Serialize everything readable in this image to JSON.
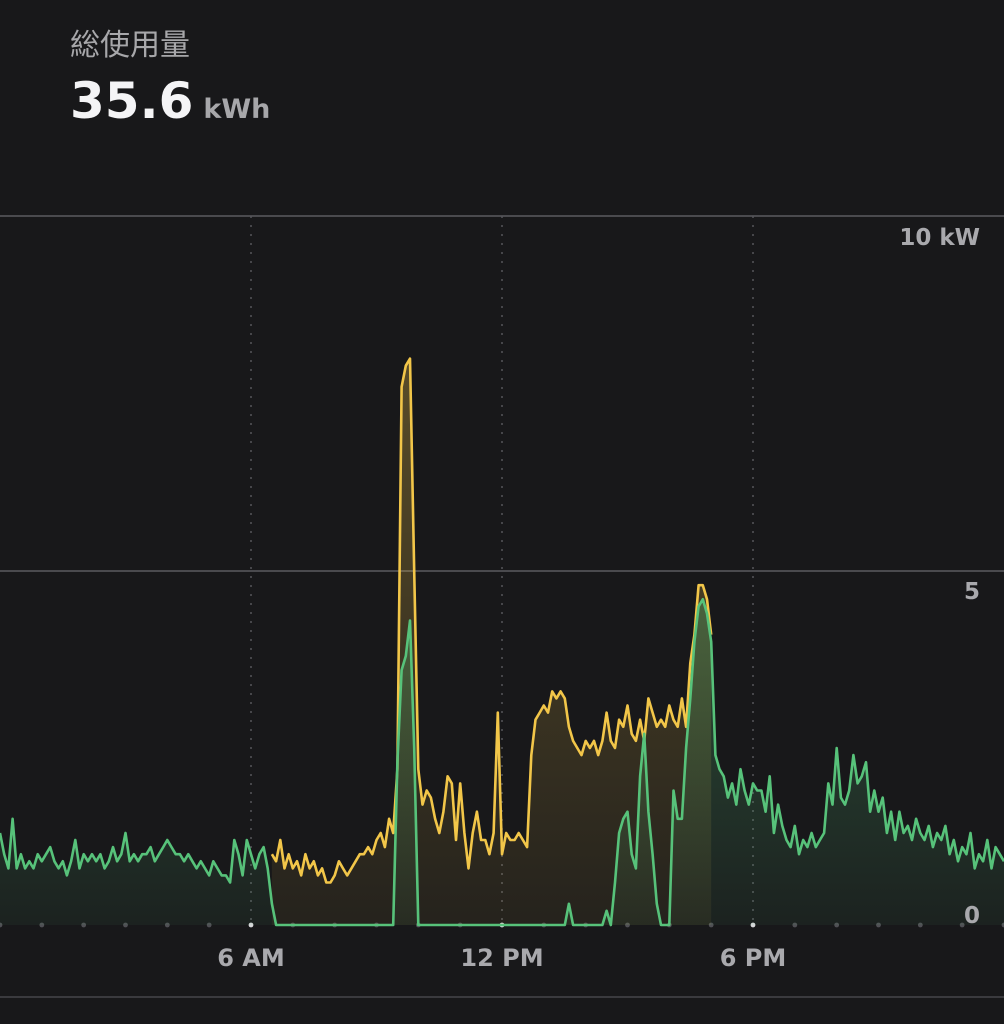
{
  "summary": {
    "label": "総使用量",
    "value": "35.6",
    "unit": "kWh"
  },
  "colors": {
    "background": "#18181a",
    "grid": "#4a4a4e",
    "series_yellow": "#f2c649",
    "series_green": "#57c27a"
  },
  "chart_data": {
    "type": "area",
    "x_unit": "hour of day",
    "xlim": [
      0,
      24
    ],
    "ylim": [
      0,
      10
    ],
    "y_ticks": [
      {
        "value": 10,
        "label": "10 kW"
      },
      {
        "value": 5,
        "label": "5"
      },
      {
        "value": 0,
        "label": "0"
      }
    ],
    "x_ticks": [
      {
        "value": 6,
        "label": "6 AM"
      },
      {
        "value": 12,
        "label": "12 PM"
      },
      {
        "value": 18,
        "label": "6 PM"
      }
    ],
    "grid": true,
    "series": [
      {
        "color": "#f2c649",
        "points": [
          [
            6.5,
            1.0
          ],
          [
            6.6,
            0.9
          ],
          [
            6.7,
            1.2
          ],
          [
            6.8,
            0.8
          ],
          [
            6.9,
            1.0
          ],
          [
            7.0,
            0.8
          ],
          [
            7.1,
            0.9
          ],
          [
            7.2,
            0.7
          ],
          [
            7.3,
            1.0
          ],
          [
            7.4,
            0.8
          ],
          [
            7.5,
            0.9
          ],
          [
            7.6,
            0.7
          ],
          [
            7.7,
            0.8
          ],
          [
            7.8,
            0.6
          ],
          [
            7.9,
            0.6
          ],
          [
            8.0,
            0.7
          ],
          [
            8.1,
            0.9
          ],
          [
            8.2,
            0.8
          ],
          [
            8.3,
            0.7
          ],
          [
            8.4,
            0.8
          ],
          [
            8.5,
            0.9
          ],
          [
            8.6,
            1.0
          ],
          [
            8.7,
            1.0
          ],
          [
            8.8,
            1.1
          ],
          [
            8.9,
            1.0
          ],
          [
            9.0,
            1.2
          ],
          [
            9.1,
            1.3
          ],
          [
            9.2,
            1.1
          ],
          [
            9.3,
            1.5
          ],
          [
            9.4,
            1.3
          ],
          [
            9.5,
            2.2
          ],
          [
            9.6,
            7.6
          ],
          [
            9.7,
            7.9
          ],
          [
            9.8,
            8.0
          ],
          [
            9.9,
            5.0
          ],
          [
            10.0,
            2.2
          ],
          [
            10.1,
            1.7
          ],
          [
            10.2,
            1.9
          ],
          [
            10.3,
            1.8
          ],
          [
            10.4,
            1.5
          ],
          [
            10.5,
            1.3
          ],
          [
            10.6,
            1.6
          ],
          [
            10.7,
            2.1
          ],
          [
            10.8,
            2.0
          ],
          [
            10.9,
            1.2
          ],
          [
            11.0,
            2.0
          ],
          [
            11.1,
            1.3
          ],
          [
            11.2,
            0.8
          ],
          [
            11.3,
            1.3
          ],
          [
            11.4,
            1.6
          ],
          [
            11.5,
            1.2
          ],
          [
            11.6,
            1.2
          ],
          [
            11.7,
            1.0
          ],
          [
            11.8,
            1.3
          ],
          [
            11.9,
            3.0
          ],
          [
            12.0,
            1.0
          ],
          [
            12.1,
            1.3
          ],
          [
            12.2,
            1.2
          ],
          [
            12.3,
            1.2
          ],
          [
            12.4,
            1.3
          ],
          [
            12.5,
            1.2
          ],
          [
            12.6,
            1.1
          ],
          [
            12.7,
            2.4
          ],
          [
            12.8,
            2.9
          ],
          [
            12.9,
            3.0
          ],
          [
            13.0,
            3.1
          ],
          [
            13.1,
            3.0
          ],
          [
            13.2,
            3.3
          ],
          [
            13.3,
            3.2
          ],
          [
            13.4,
            3.3
          ],
          [
            13.5,
            3.2
          ],
          [
            13.6,
            2.8
          ],
          [
            13.7,
            2.6
          ],
          [
            13.8,
            2.5
          ],
          [
            13.9,
            2.4
          ],
          [
            14.0,
            2.6
          ],
          [
            14.1,
            2.5
          ],
          [
            14.2,
            2.6
          ],
          [
            14.3,
            2.4
          ],
          [
            14.4,
            2.6
          ],
          [
            14.5,
            3.0
          ],
          [
            14.6,
            2.6
          ],
          [
            14.7,
            2.5
          ],
          [
            14.8,
            2.9
          ],
          [
            14.9,
            2.8
          ],
          [
            15.0,
            3.1
          ],
          [
            15.1,
            2.7
          ],
          [
            15.2,
            2.6
          ],
          [
            15.3,
            2.9
          ],
          [
            15.4,
            2.6
          ],
          [
            15.5,
            3.2
          ],
          [
            15.6,
            3.0
          ],
          [
            15.7,
            2.8
          ],
          [
            15.8,
            2.9
          ],
          [
            15.9,
            2.8
          ],
          [
            16.0,
            3.1
          ],
          [
            16.1,
            2.9
          ],
          [
            16.2,
            2.8
          ],
          [
            16.3,
            3.2
          ],
          [
            16.4,
            2.8
          ],
          [
            16.5,
            3.7
          ],
          [
            16.6,
            4.1
          ],
          [
            16.7,
            4.8
          ],
          [
            16.8,
            4.8
          ],
          [
            16.9,
            4.6
          ],
          [
            17.0,
            4.1
          ]
        ]
      },
      {
        "color": "#57c27a",
        "points": [
          [
            0.0,
            1.3
          ],
          [
            0.1,
            1.0
          ],
          [
            0.2,
            0.8
          ],
          [
            0.3,
            1.5
          ],
          [
            0.4,
            0.8
          ],
          [
            0.5,
            1.0
          ],
          [
            0.6,
            0.8
          ],
          [
            0.7,
            0.9
          ],
          [
            0.8,
            0.8
          ],
          [
            0.9,
            1.0
          ],
          [
            1.0,
            0.9
          ],
          [
            1.1,
            1.0
          ],
          [
            1.2,
            1.1
          ],
          [
            1.3,
            0.9
          ],
          [
            1.4,
            0.8
          ],
          [
            1.5,
            0.9
          ],
          [
            1.6,
            0.7
          ],
          [
            1.7,
            0.9
          ],
          [
            1.8,
            1.2
          ],
          [
            1.9,
            0.8
          ],
          [
            2.0,
            1.0
          ],
          [
            2.1,
            0.9
          ],
          [
            2.2,
            1.0
          ],
          [
            2.3,
            0.9
          ],
          [
            2.4,
            1.0
          ],
          [
            2.5,
            0.8
          ],
          [
            2.6,
            0.9
          ],
          [
            2.7,
            1.1
          ],
          [
            2.8,
            0.9
          ],
          [
            2.9,
            1.0
          ],
          [
            3.0,
            1.3
          ],
          [
            3.1,
            0.9
          ],
          [
            3.2,
            1.0
          ],
          [
            3.3,
            0.9
          ],
          [
            3.4,
            1.0
          ],
          [
            3.5,
            1.0
          ],
          [
            3.6,
            1.1
          ],
          [
            3.7,
            0.9
          ],
          [
            3.8,
            1.0
          ],
          [
            3.9,
            1.1
          ],
          [
            4.0,
            1.2
          ],
          [
            4.1,
            1.1
          ],
          [
            4.2,
            1.0
          ],
          [
            4.3,
            1.0
          ],
          [
            4.4,
            0.9
          ],
          [
            4.5,
            1.0
          ],
          [
            4.6,
            0.9
          ],
          [
            4.7,
            0.8
          ],
          [
            4.8,
            0.9
          ],
          [
            4.9,
            0.8
          ],
          [
            5.0,
            0.7
          ],
          [
            5.1,
            0.9
          ],
          [
            5.2,
            0.8
          ],
          [
            5.3,
            0.7
          ],
          [
            5.4,
            0.7
          ],
          [
            5.5,
            0.6
          ],
          [
            5.6,
            1.2
          ],
          [
            5.7,
            1.0
          ],
          [
            5.8,
            0.7
          ],
          [
            5.9,
            1.2
          ],
          [
            6.0,
            1.0
          ],
          [
            6.1,
            0.8
          ],
          [
            6.2,
            1.0
          ],
          [
            6.3,
            1.1
          ],
          [
            6.4,
            0.8
          ],
          [
            6.5,
            0.3
          ],
          [
            6.6,
            0.0
          ],
          [
            9.4,
            0.0
          ],
          [
            9.5,
            2.3
          ],
          [
            9.6,
            3.6
          ],
          [
            9.7,
            3.8
          ],
          [
            9.8,
            4.3
          ],
          [
            9.9,
            2.5
          ],
          [
            10.0,
            0.0
          ],
          [
            13.5,
            0.0
          ],
          [
            13.6,
            0.3
          ],
          [
            13.7,
            0.0
          ],
          [
            14.4,
            0.0
          ],
          [
            14.5,
            0.2
          ],
          [
            14.6,
            0.0
          ],
          [
            14.7,
            0.6
          ],
          [
            14.8,
            1.3
          ],
          [
            14.9,
            1.5
          ],
          [
            15.0,
            1.6
          ],
          [
            15.1,
            1.0
          ],
          [
            15.2,
            0.8
          ],
          [
            15.3,
            2.1
          ],
          [
            15.4,
            2.7
          ],
          [
            15.5,
            1.6
          ],
          [
            15.6,
            1.0
          ],
          [
            15.7,
            0.3
          ],
          [
            15.8,
            0.0
          ],
          [
            16.0,
            0.0
          ],
          [
            16.1,
            1.9
          ],
          [
            16.2,
            1.5
          ],
          [
            16.3,
            1.5
          ],
          [
            16.4,
            2.5
          ],
          [
            16.5,
            3.2
          ],
          [
            16.6,
            4.0
          ],
          [
            16.7,
            4.5
          ],
          [
            16.8,
            4.6
          ],
          [
            16.9,
            4.4
          ],
          [
            17.0,
            4.0
          ],
          [
            17.1,
            2.4
          ],
          [
            17.2,
            2.2
          ],
          [
            17.3,
            2.1
          ],
          [
            17.4,
            1.8
          ],
          [
            17.5,
            2.0
          ],
          [
            17.6,
            1.7
          ],
          [
            17.7,
            2.2
          ],
          [
            17.8,
            1.9
          ],
          [
            17.9,
            1.7
          ],
          [
            18.0,
            2.0
          ],
          [
            18.1,
            1.9
          ],
          [
            18.2,
            1.9
          ],
          [
            18.3,
            1.6
          ],
          [
            18.4,
            2.1
          ],
          [
            18.5,
            1.3
          ],
          [
            18.6,
            1.7
          ],
          [
            18.7,
            1.4
          ],
          [
            18.8,
            1.2
          ],
          [
            18.9,
            1.1
          ],
          [
            19.0,
            1.4
          ],
          [
            19.1,
            1.0
          ],
          [
            19.2,
            1.2
          ],
          [
            19.3,
            1.1
          ],
          [
            19.4,
            1.3
          ],
          [
            19.5,
            1.1
          ],
          [
            19.6,
            1.2
          ],
          [
            19.7,
            1.3
          ],
          [
            19.8,
            2.0
          ],
          [
            19.9,
            1.7
          ],
          [
            20.0,
            2.5
          ],
          [
            20.1,
            1.8
          ],
          [
            20.2,
            1.7
          ],
          [
            20.3,
            1.9
          ],
          [
            20.4,
            2.4
          ],
          [
            20.5,
            2.0
          ],
          [
            20.6,
            2.1
          ],
          [
            20.7,
            2.3
          ],
          [
            20.8,
            1.6
          ],
          [
            20.9,
            1.9
          ],
          [
            21.0,
            1.6
          ],
          [
            21.1,
            1.8
          ],
          [
            21.2,
            1.3
          ],
          [
            21.3,
            1.6
          ],
          [
            21.4,
            1.2
          ],
          [
            21.5,
            1.6
          ],
          [
            21.6,
            1.3
          ],
          [
            21.7,
            1.4
          ],
          [
            21.8,
            1.2
          ],
          [
            21.9,
            1.5
          ],
          [
            22.0,
            1.3
          ],
          [
            22.1,
            1.2
          ],
          [
            22.2,
            1.4
          ],
          [
            22.3,
            1.1
          ],
          [
            22.4,
            1.3
          ],
          [
            22.5,
            1.2
          ],
          [
            22.6,
            1.4
          ],
          [
            22.7,
            1.0
          ],
          [
            22.8,
            1.2
          ],
          [
            22.9,
            0.9
          ],
          [
            23.0,
            1.1
          ],
          [
            23.1,
            1.0
          ],
          [
            23.2,
            1.3
          ],
          [
            23.3,
            0.8
          ],
          [
            23.4,
            1.0
          ],
          [
            23.5,
            0.9
          ],
          [
            23.6,
            1.2
          ],
          [
            23.7,
            0.8
          ],
          [
            23.8,
            1.1
          ],
          [
            23.9,
            1.0
          ],
          [
            24.0,
            0.9
          ]
        ]
      }
    ]
  }
}
